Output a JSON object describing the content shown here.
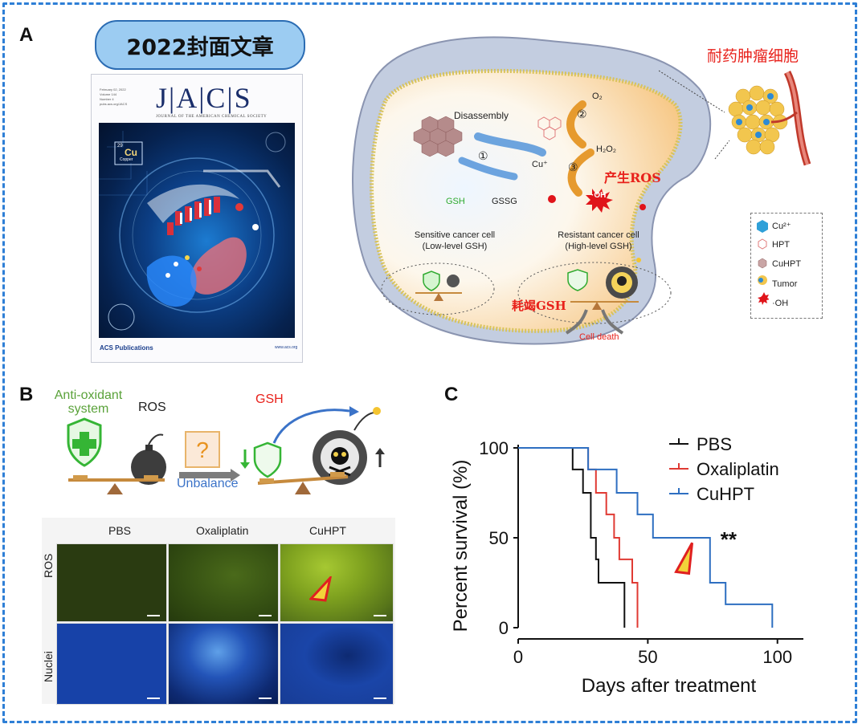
{
  "panels": {
    "a": {
      "letter": "A",
      "banner": "2022封面文章",
      "cover": {
        "journal": "JACS",
        "journal_full": "JOURNAL OF THE AMERICAN CHEMICAL SOCIETY",
        "publisher": "ACS Publications",
        "url": "www.acs.org",
        "element_num": "29",
        "element_sym": "Cu",
        "element_name": "Copper"
      },
      "title_cn": "耐药肿瘤细胞",
      "disassembly": "Disassembly",
      "o2": "O₂",
      "h2o2": "H₂O₂",
      "cu": "Cu⁺",
      "gsh": "GSH",
      "gssg": "GSSG",
      "step1": "①",
      "step2": "②",
      "step3": "③",
      "oh": "·OH",
      "ros_cn": "产生ROS",
      "sensitive_1": "Sensitive cancer cell",
      "sensitive_2": "(Low-level GSH)",
      "resistant_1": "Resistant cancer cell",
      "resistant_2": "(High-level GSH)",
      "gsh_cn": "耗竭GSH",
      "cell_death": "Cell death",
      "legend": [
        "Cu²⁺",
        "HPT",
        "CuHPT",
        "Tumor",
        "·OH"
      ]
    },
    "b": {
      "letter": "B",
      "antioxidant_1": "Anti-oxidant",
      "antioxidant_2": "system",
      "ros": "ROS",
      "gsh": "GSH",
      "unbalance": "Unbalance",
      "columns": [
        "PBS",
        "Oxaliplatin",
        "CuHPT"
      ],
      "rows": [
        "ROS",
        "Nuclei"
      ]
    },
    "c": {
      "letter": "C"
    }
  },
  "chart_data": {
    "type": "line",
    "subtype": "kaplan-meier step",
    "xlabel": "Days after treatment",
    "ylabel": "Percent survival (%)",
    "xlim": [
      0,
      110
    ],
    "ylim": [
      0,
      100
    ],
    "xticks": [
      0,
      50,
      100
    ],
    "yticks": [
      0,
      50,
      100
    ],
    "annotation": "**",
    "legend_position": "top-right",
    "series": [
      {
        "name": "PBS",
        "color": "#111111",
        "x": [
          0,
          21,
          21,
          25,
          25,
          28,
          28,
          30,
          30,
          31,
          31,
          35,
          35,
          41,
          41
        ],
        "y": [
          100,
          100,
          88,
          88,
          75,
          75,
          50,
          50,
          38,
          38,
          25,
          25,
          25,
          25,
          0
        ]
      },
      {
        "name": "Oxaliplatin",
        "color": "#e03a33",
        "x": [
          0,
          27,
          27,
          30,
          30,
          34,
          34,
          37,
          37,
          39,
          39,
          44,
          44,
          46,
          46
        ],
        "y": [
          100,
          100,
          88,
          88,
          75,
          75,
          63,
          63,
          50,
          50,
          38,
          38,
          25,
          25,
          0
        ]
      },
      {
        "name": "CuHPT",
        "color": "#2e6fc1",
        "x": [
          0,
          27,
          27,
          38,
          38,
          46,
          46,
          52,
          52,
          74,
          74,
          80,
          80,
          98,
          98
        ],
        "y": [
          100,
          100,
          88,
          88,
          75,
          75,
          63,
          63,
          50,
          50,
          25,
          25,
          13,
          13,
          0
        ]
      }
    ]
  }
}
